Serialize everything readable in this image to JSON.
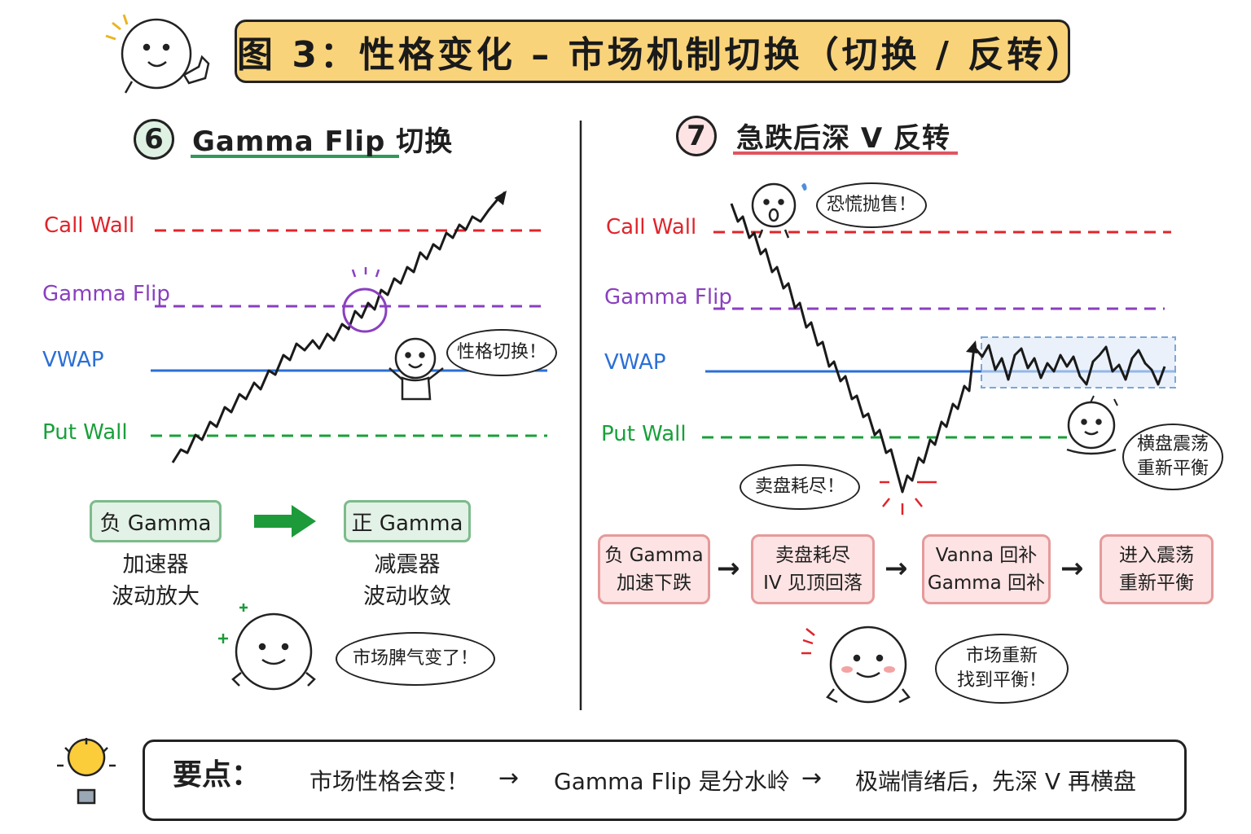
{
  "title": "图 3：性格变化 – 市场机制切换（切换 / 反转）",
  "colors": {
    "call_wall": "#e0242a",
    "gamma_flip": "#8a3fc0",
    "vwap": "#2a6fd6",
    "put_wall": "#18a03a",
    "title_bg": "#f9d37a",
    "green_box": "#e3f2e6",
    "pink_box": "#fde3e3"
  },
  "left_panel": {
    "number": "6",
    "title": "Gamma Flip 切换",
    "levels": {
      "call_wall": "Call Wall",
      "gamma_flip": "Gamma Flip",
      "vwap": "VWAP",
      "put_wall": "Put Wall"
    },
    "bubble": "性格切换！",
    "from_box": "负 Gamma",
    "from_desc": [
      "加速器",
      "波动放大"
    ],
    "to_box": "正 Gamma",
    "to_desc": [
      "减震器",
      "波动收敛"
    ],
    "mascot_bubble": "市场脾气变了！"
  },
  "right_panel": {
    "number": "7",
    "title": "急跌后深 V 反转",
    "levels": {
      "call_wall": "Call Wall",
      "gamma_flip": "Gamma Flip",
      "vwap": "VWAP",
      "put_wall": "Put Wall"
    },
    "panic_bubble": "恐慌抛售！",
    "exhaust_bubble": "卖盘耗尽！",
    "range_bubble": [
      "横盘震荡",
      "重新平衡"
    ],
    "process": [
      {
        "line1": "负 Gamma",
        "line2": "加速下跌"
      },
      {
        "line1": "卖盘耗尽",
        "line2": "IV 见顶回落"
      },
      {
        "line1": "Vanna 回补",
        "line2": "Gamma 回补"
      },
      {
        "line1": "进入震荡",
        "line2": "重新平衡"
      }
    ],
    "mascot_bubble": [
      "市场重新",
      "找到平衡！"
    ]
  },
  "key_points": {
    "label": "要点：",
    "items": [
      "市场性格会变！",
      "Gamma Flip 是分水岭",
      "极端情绪后，先深 V 再横盘"
    ],
    "arrow": "→"
  }
}
